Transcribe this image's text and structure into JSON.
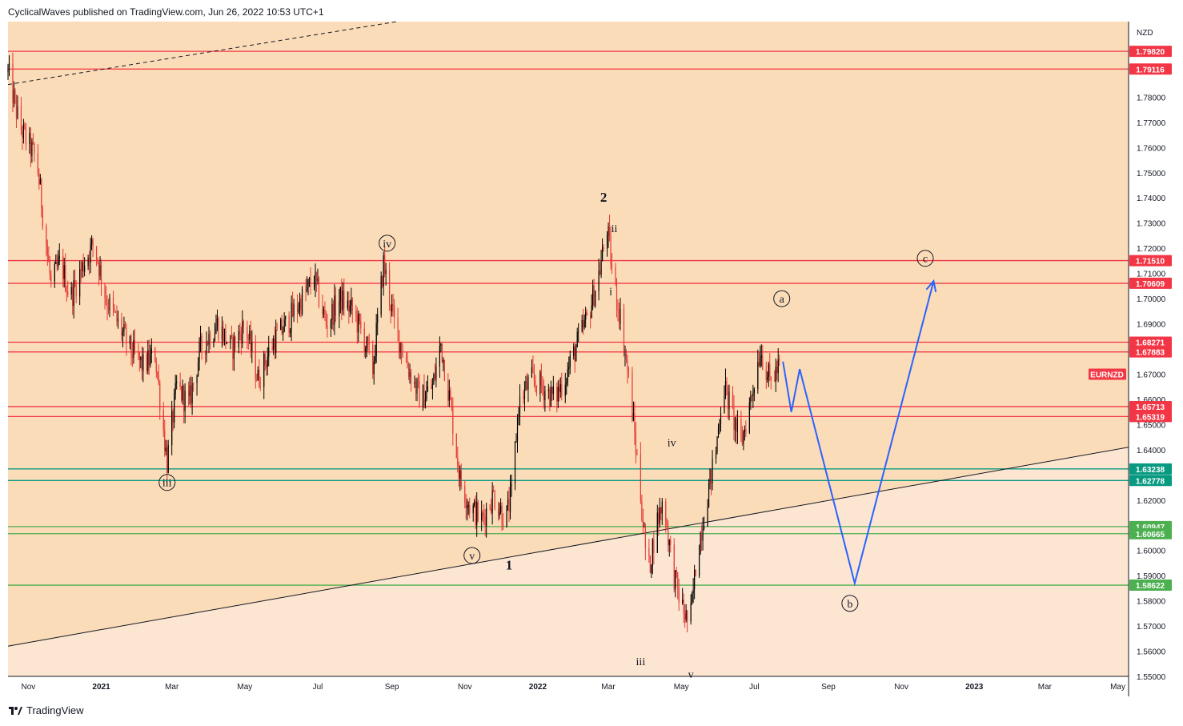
{
  "header": {
    "published_text": "CyclicalWaves published on TradingView.com, Jun 26, 2022 10:53 UTC+1"
  },
  "footer": {
    "brand": "TradingView",
    "logo_icon": "tradingview-logo-icon"
  },
  "colors": {
    "background_upper": "#fbdcb8",
    "background_lower": "#fce6d2",
    "candle_up": "#000000",
    "candle_down": "#e53935",
    "resistance_line": "#f23645",
    "support_teal": "#089981",
    "support_green": "#4caf50",
    "projection": "#2962ff",
    "trendline": "#131722"
  },
  "chart_data": {
    "type": "candlestick",
    "symbol_tag": "EURNZD",
    "currency_label": "NZD",
    "x_tick_labels": [
      "Nov",
      "2021",
      "Mar",
      "May",
      "Jul",
      "Sep",
      "Nov",
      "2022",
      "Mar",
      "May",
      "Jul",
      "Sep",
      "Nov",
      "2023",
      "Mar",
      "May"
    ],
    "y_tick_labels": [
      "1.78000",
      "1.77000",
      "1.76000",
      "1.75000",
      "1.74000",
      "1.73000",
      "1.72000",
      "1.71000",
      "1.70000",
      "1.69000",
      "1.67000",
      "1.66000",
      "1.65000",
      "1.64000",
      "1.62000",
      "1.60000",
      "1.59000",
      "1.58000",
      "1.57000",
      "1.56000",
      "1.55000"
    ],
    "ylim": [
      1.55,
      1.81
    ],
    "xlim": [
      "2020-10-15",
      "2023-05-10"
    ],
    "price_lines": [
      {
        "value": 1.7982,
        "label": "1.79820",
        "color": "#f23645"
      },
      {
        "value": 1.79116,
        "label": "1.79116",
        "color": "#f23645"
      },
      {
        "value": 1.7151,
        "label": "1.71510",
        "color": "#f23645"
      },
      {
        "value": 1.70609,
        "label": "1.70609",
        "color": "#f23645"
      },
      {
        "value": 1.68271,
        "label": "1.68271",
        "color": "#f23645"
      },
      {
        "value": 1.67883,
        "label": "1.67883",
        "color": "#f23645"
      },
      {
        "value": 1.65713,
        "label": "1.65713",
        "color": "#f23645"
      },
      {
        "value": 1.65319,
        "label": "1.65319",
        "color": "#f23645"
      },
      {
        "value": 1.63238,
        "label": "1.63238",
        "color": "#089981"
      },
      {
        "value": 1.62778,
        "label": "1.62778",
        "color": "#089981"
      },
      {
        "value": 1.60947,
        "label": "1.60947",
        "color": "#4caf50"
      },
      {
        "value": 1.60665,
        "label": "1.60665",
        "color": "#4caf50"
      },
      {
        "value": 1.58622,
        "label": "1.58622",
        "color": "#4caf50"
      }
    ],
    "last_price": {
      "value": 1.67,
      "label": "EURNZD"
    },
    "price_path": [
      [
        "2020-10-15",
        1.79
      ],
      [
        "2020-10-25",
        1.768
      ],
      [
        "2020-11-08",
        1.755
      ],
      [
        "2020-11-20",
        1.705
      ],
      [
        "2020-11-28",
        1.715
      ],
      [
        "2020-12-06",
        1.7
      ],
      [
        "2020-12-18",
        1.715
      ],
      [
        "2020-12-26",
        1.722
      ],
      [
        "2021-01-05",
        1.7
      ],
      [
        "2021-01-15",
        1.69
      ],
      [
        "2021-01-25",
        1.68
      ],
      [
        "2021-02-05",
        1.673
      ],
      [
        "2021-02-15",
        1.678
      ],
      [
        "2021-02-25",
        1.635
      ],
      [
        "2021-03-05",
        1.665
      ],
      [
        "2021-03-15",
        1.658
      ],
      [
        "2021-03-25",
        1.68
      ],
      [
        "2021-04-08",
        1.69
      ],
      [
        "2021-04-20",
        1.68
      ],
      [
        "2021-05-01",
        1.69
      ],
      [
        "2021-05-12",
        1.668
      ],
      [
        "2021-05-25",
        1.683
      ],
      [
        "2021-06-05",
        1.69
      ],
      [
        "2021-06-18",
        1.7
      ],
      [
        "2021-06-28",
        1.708
      ],
      [
        "2021-07-08",
        1.69
      ],
      [
        "2021-07-20",
        1.7
      ],
      [
        "2021-07-30",
        1.695
      ],
      [
        "2021-08-08",
        1.685
      ],
      [
        "2021-08-16",
        1.672
      ],
      [
        "2021-08-25",
        1.714
      ],
      [
        "2021-09-03",
        1.69
      ],
      [
        "2021-09-15",
        1.672
      ],
      [
        "2021-09-25",
        1.66
      ],
      [
        "2021-10-05",
        1.665
      ],
      [
        "2021-10-12",
        1.682
      ],
      [
        "2021-10-20",
        1.658
      ],
      [
        "2021-10-28",
        1.628
      ],
      [
        "2021-11-05",
        1.618
      ],
      [
        "2021-11-15",
        1.612
      ],
      [
        "2021-11-25",
        1.622
      ],
      [
        "2021-12-05",
        1.612
      ],
      [
        "2021-12-10",
        1.622
      ],
      [
        "2021-12-16",
        1.658
      ],
      [
        "2021-12-26",
        1.668
      ],
      [
        "2022-01-05",
        1.665
      ],
      [
        "2022-01-15",
        1.66
      ],
      [
        "2022-01-25",
        1.67
      ],
      [
        "2022-02-03",
        1.682
      ],
      [
        "2022-02-12",
        1.693
      ],
      [
        "2022-02-22",
        1.712
      ],
      [
        "2022-02-28",
        1.728
      ],
      [
        "2022-03-05",
        1.708
      ],
      [
        "2022-03-12",
        1.69
      ],
      [
        "2022-03-20",
        1.66
      ],
      [
        "2022-03-28",
        1.622
      ],
      [
        "2022-04-03",
        1.59
      ],
      [
        "2022-04-10",
        1.61
      ],
      [
        "2022-04-16",
        1.62
      ],
      [
        "2022-04-24",
        1.592
      ],
      [
        "2022-05-01",
        1.578
      ],
      [
        "2022-05-08",
        1.57
      ],
      [
        "2022-05-14",
        1.598
      ],
      [
        "2022-05-22",
        1.62
      ],
      [
        "2022-05-30",
        1.64
      ],
      [
        "2022-06-05",
        1.667
      ],
      [
        "2022-06-12",
        1.655
      ],
      [
        "2022-06-20",
        1.642
      ],
      [
        "2022-06-28",
        1.66
      ],
      [
        "2022-07-06",
        1.68
      ],
      [
        "2022-07-14",
        1.667
      ],
      [
        "2022-07-22",
        1.673
      ]
    ],
    "projection_path": [
      [
        "2022-07-25",
        1.675
      ],
      [
        "2022-08-01",
        1.655
      ],
      [
        "2022-08-08",
        1.672
      ],
      [
        "2022-09-23",
        1.587
      ],
      [
        "2022-11-28",
        1.707
      ]
    ],
    "trendlines": [
      {
        "style": "solid",
        "from": [
          "2020-10-15",
          1.562
        ],
        "to": [
          "2023-05-10",
          1.641
        ]
      },
      {
        "style": "dashed",
        "from": [
          "2020-10-15",
          1.785
        ],
        "to": [
          "2021-09-05",
          1.81
        ]
      }
    ],
    "wave_labels": [
      {
        "text": "iii",
        "circled": true,
        "at": [
          "2021-02-25",
          1.627
        ]
      },
      {
        "text": "iv",
        "circled": true,
        "at": [
          "2021-08-28",
          1.722
        ]
      },
      {
        "text": "v",
        "circled": true,
        "at": [
          "2021-11-07",
          1.598
        ]
      },
      {
        "text": "1",
        "circled": false,
        "bold": true,
        "at": [
          "2021-12-08",
          1.594
        ]
      },
      {
        "text": "2",
        "circled": false,
        "bold": true,
        "at": [
          "2022-02-25",
          1.74
        ]
      },
      {
        "text": "ii",
        "circled": false,
        "at": [
          "2022-03-06",
          1.728
        ]
      },
      {
        "text": "i",
        "circled": false,
        "at": [
          "2022-03-03",
          1.703
        ]
      },
      {
        "text": "iv",
        "circled": false,
        "at": [
          "2022-04-23",
          1.643
        ]
      },
      {
        "text": "iii",
        "circled": false,
        "at": [
          "2022-03-28",
          1.556
        ]
      },
      {
        "text": "v",
        "circled": false,
        "at": [
          "2022-05-09",
          1.551
        ]
      },
      {
        "text": "a",
        "circled": true,
        "at": [
          "2022-07-24",
          1.7
        ]
      },
      {
        "text": "b",
        "circled": true,
        "at": [
          "2022-09-19",
          1.579
        ]
      },
      {
        "text": "c",
        "circled": true,
        "at": [
          "2022-11-21",
          1.716
        ]
      }
    ]
  }
}
